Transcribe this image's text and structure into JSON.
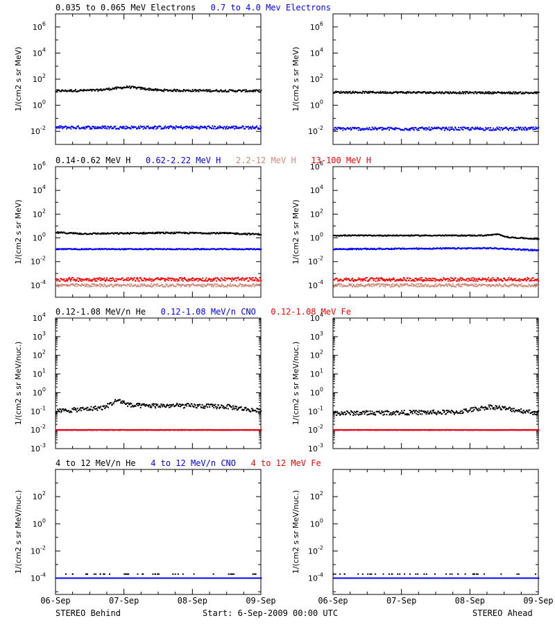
{
  "footer": {
    "left": "STEREO Behind",
    "center": "Start:  6-Sep-2009 00:00 UTC",
    "right": "STEREO Ahead"
  },
  "x_ticks": [
    "06-Sep",
    "07-Sep",
    "08-Sep",
    "09-Sep"
  ],
  "chart_data": [
    {
      "type": "scatter",
      "row": 1,
      "spacecraft": "STEREO Behind",
      "legend": [
        {
          "text": "0.035 to 0.065 MeV Electrons",
          "color": "#000000"
        },
        {
          "text": "0.7 to 4.0 Mev Electrons",
          "color": "#0000ff"
        }
      ],
      "ylabel": "1/(cm2 s sr MeV)",
      "yscale": "log",
      "ylim_exp": [
        -3,
        7
      ],
      "yticks_exp": [
        -2,
        0,
        2,
        4,
        6
      ],
      "x_days": [
        0,
        3
      ],
      "series": [
        {
          "name": "0.035 to 0.065 MeV Electrons",
          "color": "#000000",
          "level": 1.1,
          "noise": 0.08,
          "drift": [
            [
              0,
              0
            ],
            [
              0.6,
              0.05
            ],
            [
              1.05,
              0.3
            ],
            [
              1.5,
              0.05
            ],
            [
              2.2,
              0.02
            ],
            [
              3,
              0
            ]
          ]
        },
        {
          "name": "0.7 to 4.0 Mev Electrons",
          "color": "#0000ff",
          "level": -1.7,
          "noise": 0.12,
          "drift": [
            [
              0,
              0
            ],
            [
              3,
              0
            ]
          ]
        }
      ]
    },
    {
      "type": "scatter",
      "row": 1,
      "spacecraft": "STEREO Ahead",
      "legend": [],
      "ylabel": "1/(cm2 s sr MeV)",
      "yscale": "log",
      "ylim_exp": [
        -3,
        7
      ],
      "yticks_exp": [
        -2,
        0,
        2,
        4,
        6
      ],
      "x_days": [
        0,
        3
      ],
      "series": [
        {
          "name": "0.035 to 0.065 MeV Electrons",
          "color": "#000000",
          "level": 1.0,
          "noise": 0.07,
          "drift": [
            [
              0,
              0
            ],
            [
              3,
              -0.05
            ]
          ]
        },
        {
          "name": "0.7 to 4.0 Mev Electrons",
          "color": "#0000ff",
          "level": -1.8,
          "noise": 0.12,
          "drift": [
            [
              0,
              0
            ],
            [
              3,
              0
            ]
          ]
        }
      ]
    },
    {
      "type": "scatter",
      "row": 2,
      "spacecraft": "STEREO Behind",
      "legend": [
        {
          "text": "0.14-0.62 MeV H",
          "color": "#000000"
        },
        {
          "text": "0.62-2.22 MeV H",
          "color": "#0000ff"
        },
        {
          "text": "2.2-12 MeV H",
          "color": "#d08a78"
        },
        {
          "text": "13-100 MeV H",
          "color": "#ff0000"
        }
      ],
      "ylabel": "1/(cm2 s sr MeV)",
      "yscale": "log",
      "ylim_exp": [
        -5,
        6
      ],
      "yticks_exp": [
        -4,
        -2,
        0,
        2,
        4,
        6
      ],
      "x_days": [
        0,
        3
      ],
      "series": [
        {
          "name": "0.14-0.62 MeV H",
          "color": "#000000",
          "level": 0.3,
          "noise": 0.06,
          "drift": [
            [
              0,
              0.15
            ],
            [
              0.4,
              0.05
            ],
            [
              1.0,
              0.08
            ],
            [
              1.5,
              0.12
            ],
            [
              2.4,
              0.1
            ],
            [
              3,
              0
            ]
          ]
        },
        {
          "name": "0.62-2.22 MeV H",
          "color": "#0000ff",
          "level": -0.95,
          "noise": 0.04,
          "drift": [
            [
              0,
              0
            ],
            [
              3,
              0
            ]
          ]
        },
        {
          "name": "2.2-12 MeV H",
          "color": "#d08a78",
          "level": -4.0,
          "noise": 0.12,
          "drift": [
            [
              0,
              0
            ],
            [
              3,
              0
            ]
          ]
        },
        {
          "name": "13-100 MeV H",
          "color": "#ff0000",
          "level": -3.5,
          "noise": 0.15,
          "drift": [
            [
              0,
              0
            ],
            [
              3,
              0
            ]
          ]
        }
      ]
    },
    {
      "type": "scatter",
      "row": 2,
      "spacecraft": "STEREO Ahead",
      "legend": [],
      "ylabel": "1/(cm2 s sr MeV)",
      "yscale": "log",
      "ylim_exp": [
        -5,
        6
      ],
      "yticks_exp": [
        -4,
        -2,
        0,
        2,
        4,
        6
      ],
      "x_days": [
        0,
        3
      ],
      "series": [
        {
          "name": "0.14-0.62 MeV H",
          "color": "#000000",
          "level": 0.2,
          "noise": 0.04,
          "drift": [
            [
              0,
              0
            ],
            [
              2.2,
              0
            ],
            [
              2.4,
              0.1
            ],
            [
              2.55,
              -0.15
            ],
            [
              3,
              -0.3
            ]
          ]
        },
        {
          "name": "0.62-2.22 MeV H",
          "color": "#0000ff",
          "level": -0.95,
          "noise": 0.05,
          "drift": [
            [
              0,
              0
            ],
            [
              2.3,
              0.08
            ],
            [
              3,
              -0.1
            ]
          ]
        },
        {
          "name": "2.2-12 MeV H",
          "color": "#d08a78",
          "level": -4.0,
          "noise": 0.12,
          "drift": [
            [
              0,
              0
            ],
            [
              3,
              0
            ]
          ]
        },
        {
          "name": "13-100 MeV H",
          "color": "#ff0000",
          "level": -3.5,
          "noise": 0.15,
          "drift": [
            [
              0,
              0
            ],
            [
              3,
              0
            ]
          ]
        }
      ]
    },
    {
      "type": "scatter",
      "row": 3,
      "spacecraft": "STEREO Behind",
      "legend": [
        {
          "text": "0.12-1.08 MeV/n He",
          "color": "#000000"
        },
        {
          "text": "0.12-1.08 MeV/n CNO",
          "color": "#0000ff"
        },
        {
          "text": "0.12-1.08 MeV Fe",
          "color": "#ff0000"
        }
      ],
      "ylabel": "1/(cm2 s sr MeV/nuc.)",
      "yscale": "log",
      "ylim_exp": [
        -3,
        4
      ],
      "yticks_exp": [
        -3,
        -2,
        -1,
        0,
        1,
        2,
        3,
        4
      ],
      "x_days": [
        0,
        3
      ],
      "series": [
        {
          "name": "0.12-1.08 MeV/n He",
          "color": "#000000",
          "level": -1.0,
          "noise": 0.12,
          "drift": [
            [
              0,
              0
            ],
            [
              0.7,
              0.2
            ],
            [
              0.9,
              0.6
            ],
            [
              1.1,
              0.3
            ],
            [
              1.8,
              0.3
            ],
            [
              2.5,
              0.25
            ],
            [
              3,
              0
            ]
          ]
        },
        {
          "name": "0.12-1.08 MeV/n CNO",
          "color": "#0000ff",
          "level": -2.0,
          "noise": 0.01,
          "drift": [
            [
              0,
              0
            ],
            [
              3,
              0
            ]
          ]
        },
        {
          "name": "0.12-1.08 MeV Fe",
          "color": "#ff0000",
          "level": -2.0,
          "noise": 0.01,
          "drift": [
            [
              0,
              0
            ],
            [
              3,
              0
            ]
          ]
        }
      ]
    },
    {
      "type": "scatter",
      "row": 3,
      "spacecraft": "STEREO Ahead",
      "legend": [],
      "ylabel": "1/(cm2 s sr MeV/nuc.)",
      "yscale": "log",
      "ylim_exp": [
        -3,
        4
      ],
      "yticks_exp": [
        -3,
        -2,
        -1,
        0,
        1,
        2,
        3,
        4
      ],
      "x_days": [
        0,
        3
      ],
      "series": [
        {
          "name": "0.12-1.08 MeV/n He",
          "color": "#000000",
          "level": -1.1,
          "noise": 0.12,
          "drift": [
            [
              0,
              0
            ],
            [
              1.8,
              0.05
            ],
            [
              2.3,
              0.35
            ],
            [
              3,
              0
            ]
          ]
        },
        {
          "name": "0.12-1.08 MeV/n CNO",
          "color": "#0000ff",
          "level": -2.0,
          "noise": 0.01,
          "drift": [
            [
              0,
              0
            ],
            [
              3,
              0
            ]
          ]
        },
        {
          "name": "0.12-1.08 MeV Fe",
          "color": "#ff0000",
          "level": -2.0,
          "noise": 0.01,
          "drift": [
            [
              0,
              0
            ],
            [
              3,
              0
            ]
          ]
        }
      ]
    },
    {
      "type": "scatter",
      "row": 4,
      "spacecraft": "STEREO Behind",
      "legend": [
        {
          "text": "4 to 12 MeV/n He",
          "color": "#000000"
        },
        {
          "text": "4 to 12 MeV/n CNO",
          "color": "#0000ff"
        },
        {
          "text": "4 to 12 MeV Fe",
          "color": "#ff0000"
        }
      ],
      "ylabel": "1/(cm2 s sr MeV/nuc.)",
      "yscale": "log",
      "ylim_exp": [
        -5.2,
        4
      ],
      "yticks_exp": [
        -4,
        -2,
        0,
        2
      ],
      "x_days": [
        0,
        3
      ],
      "series": [
        {
          "name": "4 to 12 MeV/n He",
          "color": "#000000",
          "level": -3.7,
          "noise": 0.0,
          "sparse": true,
          "drift": [
            [
              0,
              0
            ],
            [
              3,
              0
            ]
          ]
        },
        {
          "name": "4 to 12 MeV/n CNO",
          "color": "#0000ff",
          "level": -4.0,
          "noise": 0.0,
          "drift": [
            [
              0,
              0
            ],
            [
              3,
              0
            ]
          ]
        }
      ]
    },
    {
      "type": "scatter",
      "row": 4,
      "spacecraft": "STEREO Ahead",
      "legend": [],
      "ylabel": "1/(cm2 s sr MeV/nuc.)",
      "yscale": "log",
      "ylim_exp": [
        -5.2,
        4
      ],
      "yticks_exp": [
        -4,
        -2,
        0,
        2
      ],
      "x_days": [
        0,
        3
      ],
      "series": [
        {
          "name": "4 to 12 MeV/n He",
          "color": "#000000",
          "level": -3.7,
          "noise": 0.0,
          "sparse": true,
          "drift": [
            [
              0,
              0
            ],
            [
              3,
              0
            ]
          ]
        },
        {
          "name": "4 to 12 MeV/n CNO",
          "color": "#0000ff",
          "level": -4.0,
          "noise": 0.0,
          "drift": [
            [
              0,
              0
            ],
            [
              3,
              0
            ]
          ]
        }
      ]
    }
  ]
}
